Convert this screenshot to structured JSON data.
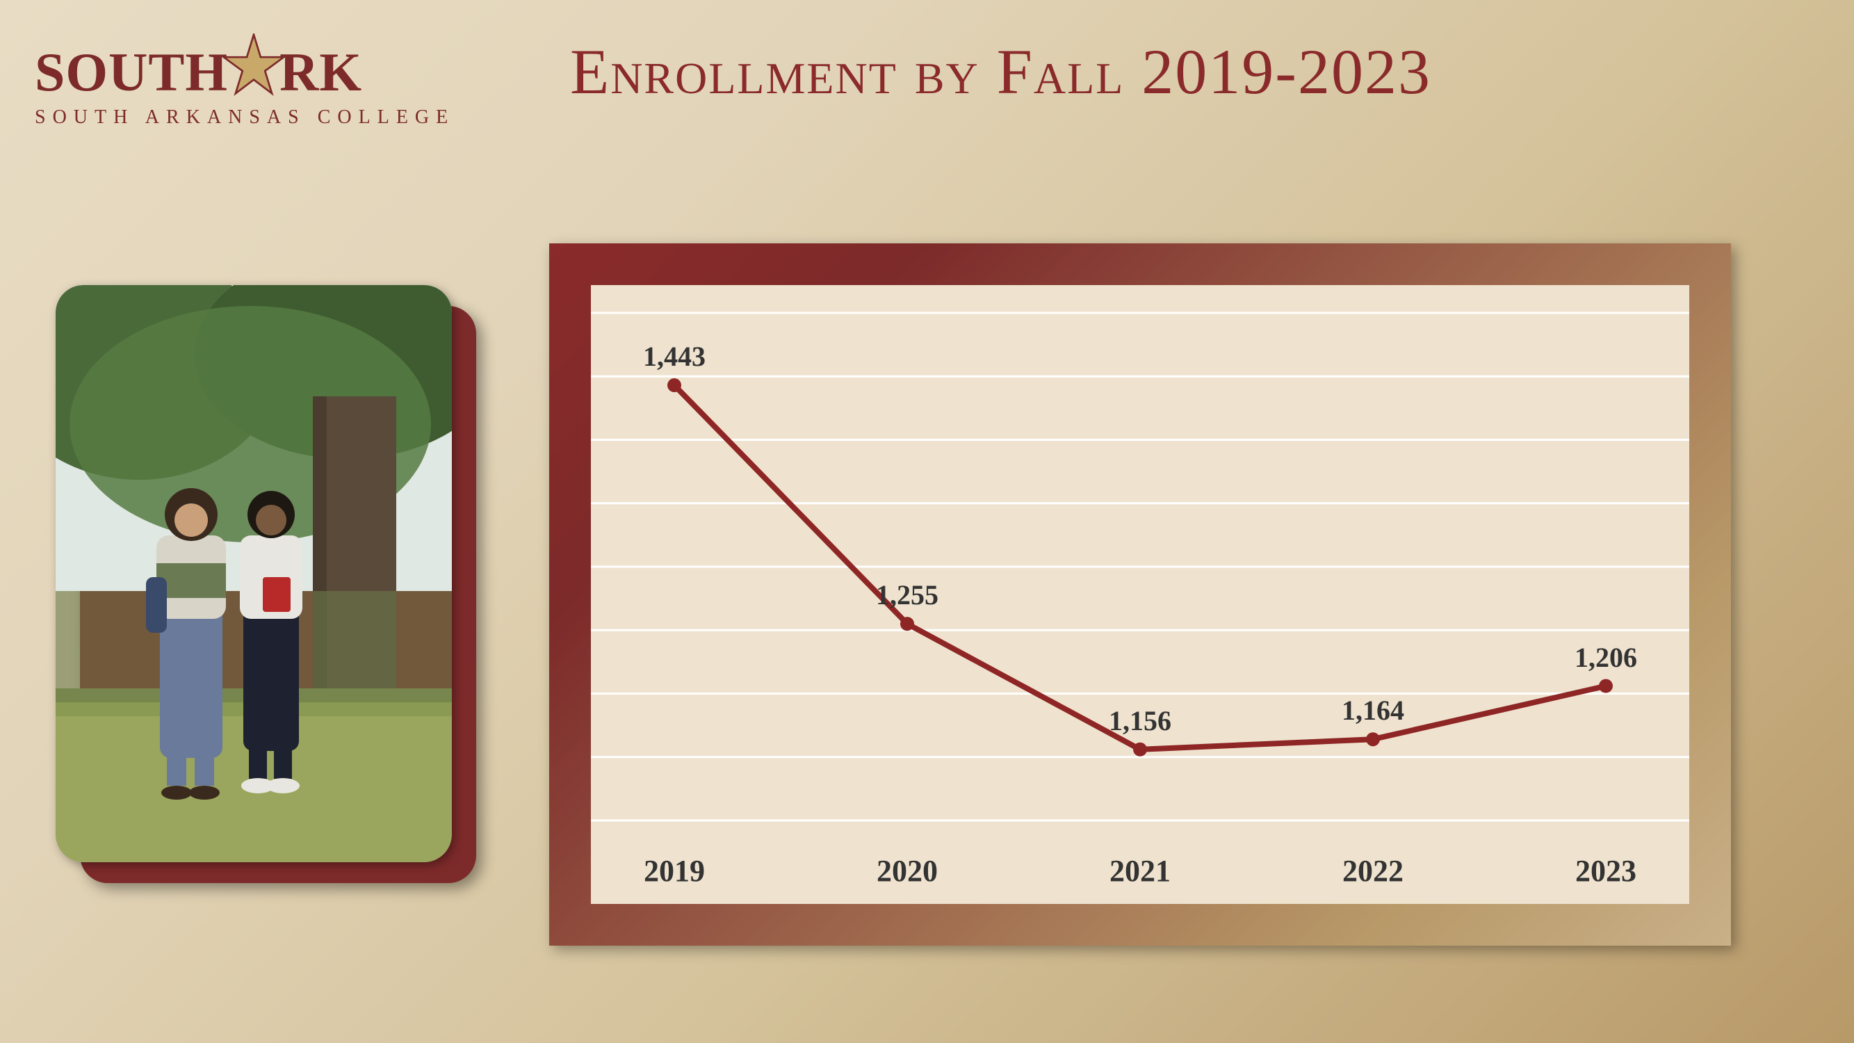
{
  "logo": {
    "south": "SOUTH",
    "rk": "RK",
    "subtitle": "SOUTH ARKANSAS COLLEGE",
    "text_color": "#7d2a2a",
    "star_fill": "#c9a96a",
    "star_outline": "#7d2a2a"
  },
  "title": {
    "text": "Enrollment by Fall 2019-2023",
    "color": "#8a2a2a",
    "fontsize": 92
  },
  "photo": {
    "alt": "Two students walking on campus lawn near trees",
    "corner_radius": 40,
    "shadow_color": "#7d2a2a"
  },
  "chart": {
    "type": "line",
    "categories": [
      "2019",
      "2020",
      "2021",
      "2022",
      "2023"
    ],
    "values": [
      1443,
      1255,
      1156,
      1164,
      1206
    ],
    "value_labels": [
      "1,443",
      "1,255",
      "1,156",
      "1,164",
      "1,206"
    ],
    "ylim": [
      1100,
      1500
    ],
    "gridline_y": [
      1100,
      1150,
      1200,
      1250,
      1300,
      1350,
      1400,
      1450,
      1500
    ],
    "plot_background": "#efe3cf",
    "gridline_color": "#ffffff",
    "line_color": "#8f2626",
    "line_width": 8,
    "marker_color": "#8f2626",
    "marker_radius": 10,
    "label_fontsize": 40,
    "axis_fontsize": 44,
    "frame_gradient": [
      "#8a2a2a",
      "#7d2a2a",
      "#b89968",
      "#c9b088"
    ],
    "plot_left_pad": 120,
    "plot_right_pad": 120,
    "plot_top_pad": 40,
    "plot_bottom_pad": 120
  }
}
